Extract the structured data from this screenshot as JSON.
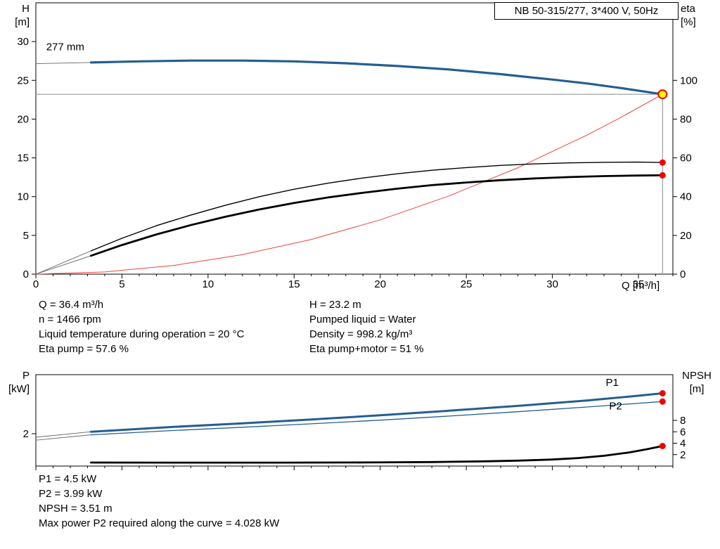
{
  "title_box": "NB 50-315/277, 3*400 V, 50Hz",
  "info_top": {
    "left": [
      "Q = 36.4 m³/h",
      "n = 1466 rpm",
      "Liquid temperature during operation = 20 °C",
      "Eta pump = 57.6 %"
    ],
    "right": [
      "H = 23.2 m",
      "Pumped liquid = Water",
      "Density = 998.2 kg/m³",
      "Eta pump+motor = 51 %"
    ]
  },
  "info_bottom": [
    "P1 = 4.5 kW",
    "P2 = 3.99 kW",
    "NPSH = 3.51 m",
    "Max power P2 required along the curve = 4.028 kW"
  ],
  "chart_data": [
    {
      "type": "line",
      "name": "qh-chart",
      "title": "NB 50-315/277, 3*400 V, 50Hz",
      "operating_point": {
        "Q": 36.4,
        "H": 23.2,
        "eta_pump": 57.6,
        "eta_pump_motor": 51
      },
      "x": {
        "label": "Q [m³/h]",
        "min": 0,
        "max": 37,
        "ticks": [
          0,
          5,
          10,
          15,
          20,
          25,
          30,
          35
        ],
        "minor_step": 1,
        "show_labels": true
      },
      "y_left": {
        "name": "H",
        "unit": "[m]",
        "min": 0,
        "max": 35,
        "ticks": [
          0,
          5,
          10,
          15,
          20,
          25,
          30
        ]
      },
      "y_right": {
        "name": "eta",
        "unit": "[%]",
        "min": 0,
        "max": 140,
        "ticks": [
          0,
          20,
          40,
          60,
          80,
          100
        ]
      },
      "series": [
        {
          "name": "duty-h-crosshair",
          "axis": "left",
          "color": "#8a8a8a",
          "width": 1,
          "points": [
            [
              0,
              23.2
            ],
            [
              36.4,
              23.2
            ]
          ]
        },
        {
          "name": "duty-q-crosshair",
          "axis": "left",
          "color": "#8a8a8a",
          "width": 1,
          "points": [
            [
              36.4,
              0
            ],
            [
              36.4,
              23.2
            ]
          ]
        },
        {
          "name": "pump-curve-lead",
          "axis": "left",
          "color": "#666666",
          "width": 0.9,
          "points": [
            [
              0,
              27.15
            ],
            [
              3.2,
              27.3
            ]
          ]
        },
        {
          "name": "eta-pump-lead",
          "axis": "right",
          "color": "#666666",
          "width": 0.9,
          "points": [
            [
              0,
              0
            ],
            [
              3.2,
              12
            ]
          ]
        },
        {
          "name": "eta-pump-motor-lead",
          "axis": "right",
          "color": "#666666",
          "width": 0.9,
          "points": [
            [
              0,
              0
            ],
            [
              3.2,
              9.5
            ]
          ]
        },
        {
          "name": "system-curve",
          "axis": "left",
          "color": "#e8453c",
          "width": 1,
          "points": [
            [
              0,
              0
            ],
            [
              4,
              0.28
            ],
            [
              8,
              1.12
            ],
            [
              12,
              2.52
            ],
            [
              16,
              4.48
            ],
            [
              20,
              7.0
            ],
            [
              24,
              10.09
            ],
            [
              28,
              13.73
            ],
            [
              32,
              17.93
            ],
            [
              34,
              20.24
            ],
            [
              36.4,
              23.2
            ]
          ]
        },
        {
          "name": "eta-pump-curve",
          "axis": "right",
          "color": "#000000",
          "width": 1.4,
          "points": [
            [
              3.2,
              12
            ],
            [
              5,
              18.5
            ],
            [
              7,
              25
            ],
            [
              9,
              30.5
            ],
            [
              11,
              35.5
            ],
            [
              13,
              40
            ],
            [
              15,
              43.8
            ],
            [
              17,
              47
            ],
            [
              19,
              49.6
            ],
            [
              21,
              51.8
            ],
            [
              23,
              53.6
            ],
            [
              25,
              55
            ],
            [
              27,
              56.1
            ],
            [
              29,
              56.9
            ],
            [
              31,
              57.4
            ],
            [
              33,
              57.7
            ],
            [
              35,
              57.8
            ],
            [
              36.4,
              57.6
            ]
          ]
        },
        {
          "name": "eta-pump-motor-curve",
          "axis": "right",
          "color": "#000000",
          "width": 2.8,
          "points": [
            [
              3.2,
              9.5
            ],
            [
              5,
              15
            ],
            [
              7,
              20.5
            ],
            [
              9,
              25.3
            ],
            [
              11,
              29.6
            ],
            [
              13,
              33.4
            ],
            [
              15,
              36.7
            ],
            [
              17,
              39.6
            ],
            [
              19,
              42
            ],
            [
              21,
              44.1
            ],
            [
              23,
              45.9
            ],
            [
              25,
              47.3
            ],
            [
              27,
              48.5
            ],
            [
              29,
              49.4
            ],
            [
              31,
              50.1
            ],
            [
              33,
              50.6
            ],
            [
              35,
              50.9
            ],
            [
              36.4,
              51
            ]
          ]
        },
        {
          "name": "pump-curve-277mm",
          "axis": "left",
          "color": "#255e91",
          "width": 3.2,
          "points": [
            [
              3.2,
              27.3
            ],
            [
              6,
              27.45
            ],
            [
              9,
              27.55
            ],
            [
              12,
              27.55
            ],
            [
              15,
              27.45
            ],
            [
              18,
              27.2
            ],
            [
              21,
              26.85
            ],
            [
              24,
              26.4
            ],
            [
              27,
              25.8
            ],
            [
              30,
              25.1
            ],
            [
              32,
              24.6
            ],
            [
              34,
              24.0
            ],
            [
              35.5,
              23.5
            ],
            [
              36.4,
              23.2
            ]
          ]
        }
      ],
      "markers": [
        {
          "name": "eta-pump-point",
          "axis": "right",
          "x": 36.4,
          "y": 57.6,
          "r": 4.5,
          "fill": "#f20000"
        },
        {
          "name": "eta-pump-motor-point",
          "axis": "right",
          "x": 36.4,
          "y": 51,
          "r": 4.5,
          "fill": "#f20000"
        },
        {
          "name": "duty-point",
          "axis": "left",
          "x": 36.4,
          "y": 23.2,
          "r": 6,
          "fill": "#ffff00",
          "stroke": "#f20000",
          "stroke_width": 2
        }
      ],
      "annotations": [
        {
          "name": "impeller-label",
          "text": "277 mm",
          "axis": "left",
          "x": 0.6,
          "y": 28.9,
          "color": "#000000"
        }
      ]
    },
    {
      "type": "line",
      "name": "power-npsh-chart",
      "x": {
        "label": "",
        "min": 0,
        "max": 37,
        "ticks": [
          0,
          5,
          10,
          15,
          20,
          25,
          30,
          35
        ],
        "minor_step": 1,
        "show_labels": false
      },
      "y_left": {
        "name": "P",
        "unit": "[kW]",
        "min": 0,
        "max": 5.65,
        "ticks": [
          2
        ]
      },
      "y_right": {
        "name": "NPSH",
        "unit": "[m]",
        "min": 0,
        "max": 16,
        "ticks": [
          2,
          4,
          6,
          8
        ]
      },
      "series": [
        {
          "name": "p1-lead",
          "axis": "left",
          "color": "#666666",
          "width": 0.9,
          "points": [
            [
              0,
              1.78
            ],
            [
              3.2,
              2.12
            ]
          ]
        },
        {
          "name": "p2-lead",
          "axis": "left",
          "color": "#666666",
          "width": 0.9,
          "points": [
            [
              0,
              1.6
            ],
            [
              3.2,
              1.93
            ]
          ]
        },
        {
          "name": "p2-curve",
          "axis": "left",
          "color": "#255e91",
          "width": 1.3,
          "points": [
            [
              3.2,
              1.93
            ],
            [
              8,
              2.2
            ],
            [
              12,
              2.4
            ],
            [
              16,
              2.61
            ],
            [
              20,
              2.84
            ],
            [
              24,
              3.09
            ],
            [
              28,
              3.36
            ],
            [
              32,
              3.65
            ],
            [
              34.5,
              3.84
            ],
            [
              36.4,
              3.99
            ]
          ]
        },
        {
          "name": "p1-curve",
          "axis": "left",
          "color": "#255e91",
          "width": 3,
          "points": [
            [
              3.2,
              2.12
            ],
            [
              8,
              2.42
            ],
            [
              12,
              2.64
            ],
            [
              16,
              2.88
            ],
            [
              20,
              3.14
            ],
            [
              24,
              3.42
            ],
            [
              28,
              3.72
            ],
            [
              32,
              4.05
            ],
            [
              34.5,
              4.3
            ],
            [
              36.4,
              4.5
            ]
          ]
        },
        {
          "name": "npsh-curve",
          "axis": "right",
          "color": "#000000",
          "width": 2.8,
          "points": [
            [
              3.2,
              0.62
            ],
            [
              8,
              0.6
            ],
            [
              14,
              0.6
            ],
            [
              19,
              0.63
            ],
            [
              23,
              0.7
            ],
            [
              26,
              0.82
            ],
            [
              28,
              0.95
            ],
            [
              30,
              1.15
            ],
            [
              31.5,
              1.4
            ],
            [
              33,
              1.8
            ],
            [
              34.5,
              2.4
            ],
            [
              35.5,
              2.95
            ],
            [
              36.4,
              3.51
            ]
          ]
        }
      ],
      "markers": [
        {
          "name": "p1-point",
          "axis": "left",
          "x": 36.4,
          "y": 4.5,
          "r": 4.5,
          "fill": "#f20000"
        },
        {
          "name": "p2-point",
          "axis": "left",
          "x": 36.4,
          "y": 3.99,
          "r": 4.5,
          "fill": "#f20000"
        },
        {
          "name": "npsh-point",
          "axis": "right",
          "x": 36.4,
          "y": 3.51,
          "r": 4.5,
          "fill": "#f20000"
        }
      ],
      "annotations": [
        {
          "name": "p1-label",
          "text": "P1",
          "axis": "left",
          "x": 33.1,
          "y": 4.95,
          "color": "#255e91"
        },
        {
          "name": "p2-label",
          "text": "P2",
          "axis": "left",
          "x": 33.3,
          "y": 3.5,
          "color": "#255e91"
        }
      ]
    }
  ]
}
